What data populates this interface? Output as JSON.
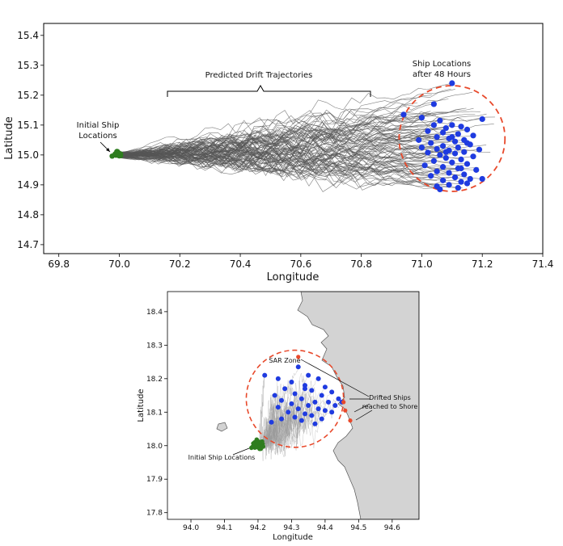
{
  "chart_data": [
    {
      "type": "line",
      "xlabel": "Longitude",
      "ylabel": "Latitude",
      "xlim": [
        69.75,
        71.4
      ],
      "ylim": [
        14.67,
        15.44
      ],
      "xticks": [
        "69.8",
        "70.0",
        "70.2",
        "70.4",
        "70.6",
        "70.8",
        "71.0",
        "71.2",
        "71.4"
      ],
      "yticks": [
        "14.7",
        "14.8",
        "14.9",
        "15.0",
        "15.1",
        "15.2",
        "15.3",
        "15.4"
      ],
      "grid": false,
      "start": {
        "lon": 70.0,
        "lat": 15.0
      },
      "trajectory_count": 100,
      "circle": {
        "lon": 71.1,
        "lat": 15.055,
        "radius_lon": 0.175
      },
      "colors": {
        "trajectory": "#555555",
        "start": "#2e7d1f",
        "end": "#1f3be0",
        "circle": "#e8492b"
      },
      "end_points": [
        [
          71.1,
          15.24
        ],
        [
          71.04,
          15.17
        ],
        [
          70.94,
          15.135
        ],
        [
          71.0,
          15.125
        ],
        [
          71.2,
          15.12
        ],
        [
          71.06,
          15.115
        ],
        [
          71.1,
          15.1
        ],
        [
          71.13,
          15.095
        ],
        [
          71.08,
          15.09
        ],
        [
          71.15,
          15.085
        ],
        [
          71.02,
          15.08
        ],
        [
          71.07,
          15.075
        ],
        [
          71.12,
          15.07
        ],
        [
          71.17,
          15.065
        ],
        [
          71.05,
          15.06
        ],
        [
          71.09,
          15.055
        ],
        [
          71.14,
          15.05
        ],
        [
          70.99,
          15.05
        ],
        [
          71.11,
          15.045
        ],
        [
          71.03,
          15.04
        ],
        [
          71.16,
          15.035
        ],
        [
          71.07,
          15.03
        ],
        [
          71.12,
          15.025
        ],
        [
          71.0,
          15.025
        ],
        [
          71.05,
          15.02
        ],
        [
          71.19,
          15.018
        ],
        [
          71.09,
          15.015
        ],
        [
          71.14,
          15.01
        ],
        [
          71.02,
          15.008
        ],
        [
          71.11,
          15.005
        ],
        [
          71.06,
          15.0
        ],
        [
          71.17,
          14.995
        ],
        [
          71.08,
          14.99
        ],
        [
          71.13,
          14.985
        ],
        [
          71.04,
          14.98
        ],
        [
          71.1,
          14.975
        ],
        [
          71.15,
          14.97
        ],
        [
          71.01,
          14.965
        ],
        [
          71.07,
          14.96
        ],
        [
          71.12,
          14.955
        ],
        [
          71.18,
          14.95
        ],
        [
          71.05,
          14.945
        ],
        [
          71.09,
          14.94
        ],
        [
          71.14,
          14.935
        ],
        [
          71.03,
          14.93
        ],
        [
          71.11,
          14.925
        ],
        [
          71.16,
          14.92
        ],
        [
          71.07,
          14.915
        ],
        [
          71.2,
          14.92
        ],
        [
          71.13,
          14.91
        ],
        [
          71.09,
          14.9
        ],
        [
          71.15,
          14.905
        ],
        [
          71.05,
          14.895
        ],
        [
          71.12,
          14.89
        ],
        [
          71.06,
          14.885
        ],
        [
          71.13,
          14.955
        ],
        [
          71.1,
          15.06
        ],
        [
          71.15,
          15.04
        ],
        [
          71.08,
          15.01
        ],
        [
          71.04,
          15.1
        ]
      ],
      "annotations": {
        "initial": [
          "Initial Ship",
          "Locations"
        ],
        "drift": "Predicted Drift Trajectories",
        "final": [
          "Ship Locations",
          "after 48 Hours"
        ]
      }
    },
    {
      "type": "line",
      "xlabel": "Longitude",
      "ylabel": "Latitude",
      "xlim": [
        93.93,
        94.68
      ],
      "ylim": [
        17.78,
        18.46
      ],
      "xticks": [
        "94.0",
        "94.1",
        "94.2",
        "94.3",
        "94.4",
        "94.5",
        "94.6"
      ],
      "yticks": [
        "17.8",
        "17.9",
        "18.0",
        "18.1",
        "18.2",
        "18.3",
        "18.4"
      ],
      "grid": false,
      "start": {
        "lon": 94.2,
        "lat": 18.0
      },
      "circle": {
        "lon": 94.31,
        "lat": 18.14,
        "radius_lon": 0.145
      },
      "colors": {
        "trajectory": "#9a9a9a",
        "start": "#2e7d1f",
        "end": "#1f3be0",
        "circle": "#e8492b",
        "land": "#d3d3d3",
        "shore": "#e8492b"
      },
      "end_points": [
        [
          94.32,
          18.235
        ],
        [
          94.35,
          18.21
        ],
        [
          94.38,
          18.2
        ],
        [
          94.26,
          18.2
        ],
        [
          94.3,
          18.19
        ],
        [
          94.34,
          18.18
        ],
        [
          94.4,
          18.175
        ],
        [
          94.28,
          18.17
        ],
        [
          94.36,
          18.165
        ],
        [
          94.42,
          18.16
        ],
        [
          94.31,
          18.155
        ],
        [
          94.25,
          18.15
        ],
        [
          94.39,
          18.15
        ],
        [
          94.33,
          18.14
        ],
        [
          94.44,
          18.14
        ],
        [
          94.27,
          18.135
        ],
        [
          94.37,
          18.13
        ],
        [
          94.41,
          18.13
        ],
        [
          94.3,
          18.125
        ],
        [
          94.35,
          18.12
        ],
        [
          94.43,
          18.12
        ],
        [
          94.26,
          18.115
        ],
        [
          94.32,
          18.11
        ],
        [
          94.38,
          18.11
        ],
        [
          94.4,
          18.105
        ],
        [
          94.29,
          18.1
        ],
        [
          94.34,
          18.095
        ],
        [
          94.42,
          18.1
        ],
        [
          94.36,
          18.09
        ],
        [
          94.31,
          18.085
        ],
        [
          94.27,
          18.08
        ],
        [
          94.39,
          18.08
        ],
        [
          94.33,
          18.075
        ],
        [
          94.24,
          18.07
        ],
        [
          94.37,
          18.065
        ],
        [
          94.22,
          18.21
        ],
        [
          94.45,
          18.13
        ],
        [
          94.34,
          18.17
        ]
      ],
      "shore_points": [
        [
          94.32,
          18.265
        ],
        [
          94.455,
          18.13
        ],
        [
          94.46,
          18.105
        ],
        [
          94.475,
          18.075
        ]
      ],
      "annotations": {
        "sar": "SAR Zone",
        "shore": [
          "Drifted Ships",
          "reached to Shore"
        ],
        "initial": "Initial Ship Locations"
      }
    }
  ]
}
